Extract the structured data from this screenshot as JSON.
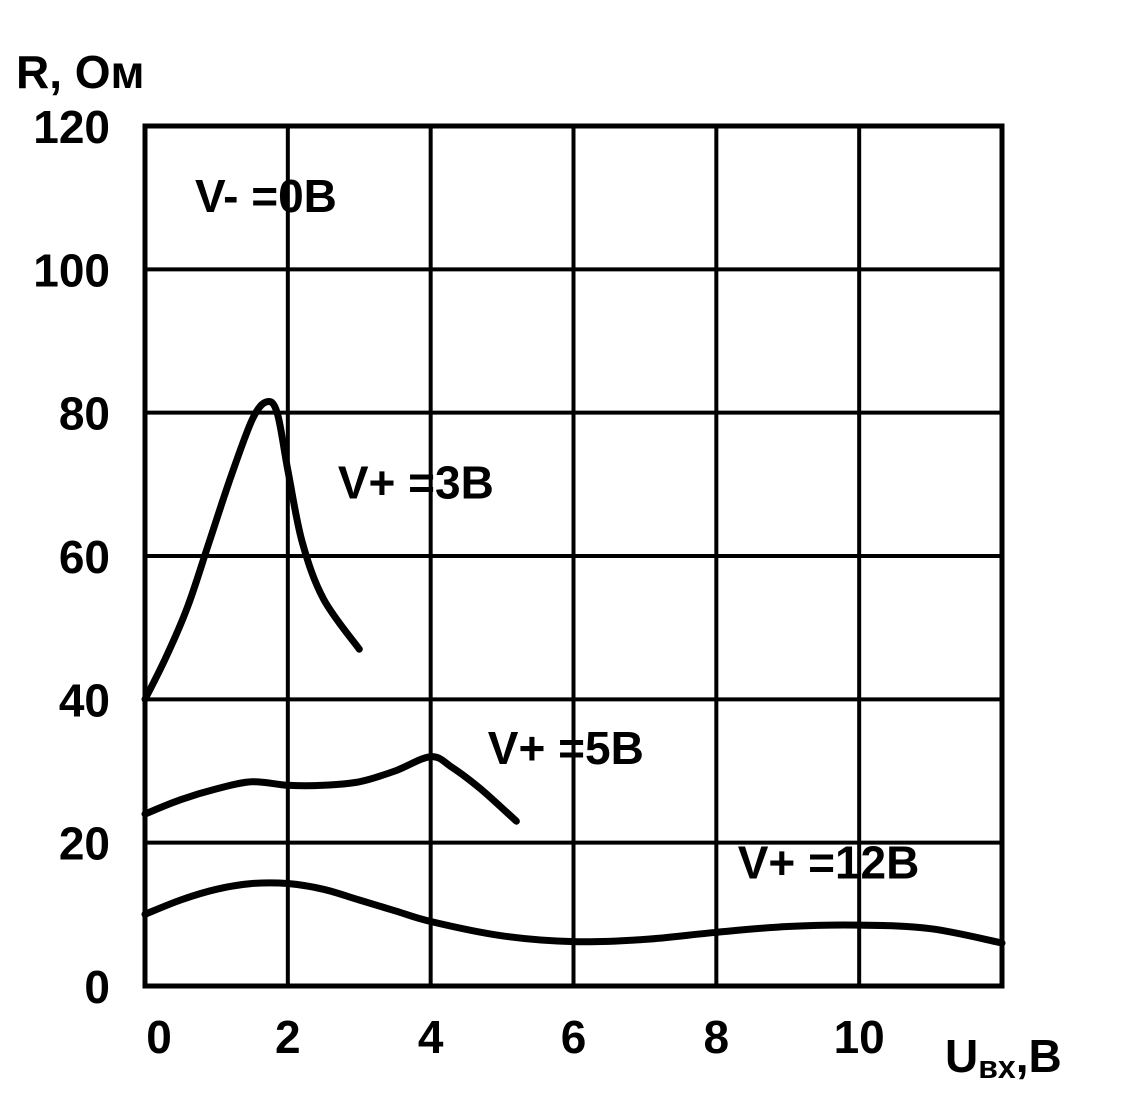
{
  "chart_data": {
    "type": "line",
    "ylabel": "R, Ом",
    "xlabel_main": "U",
    "xlabel_sub": "вх",
    "xlabel_tail": ",В",
    "xlim": [
      0,
      12
    ],
    "ylim": [
      0,
      120
    ],
    "x_ticks": [
      0,
      2,
      4,
      6,
      8,
      10
    ],
    "y_ticks": [
      0,
      20,
      40,
      60,
      80,
      100,
      120
    ],
    "grid": true,
    "annotations": [
      {
        "text": "V- =0В",
        "x": 0.7,
        "y": 108
      },
      {
        "text": "V+ =3В",
        "x": 2.7,
        "y": 68
      },
      {
        "text": "V+ =5В",
        "x": 4.8,
        "y": 31
      },
      {
        "text": "V+ =12В",
        "x": 8.3,
        "y": 15
      }
    ],
    "series": [
      {
        "x": [
          0,
          0.3,
          0.6,
          0.9,
          1.2,
          1.5,
          1.7,
          1.85,
          2.0,
          2.2,
          2.5,
          3.0
        ],
        "y": [
          40,
          46,
          53,
          62,
          71,
          79,
          81.5,
          80,
          72,
          62,
          54,
          47
        ]
      },
      {
        "x": [
          0,
          0.5,
          1.0,
          1.5,
          2.0,
          2.5,
          3.0,
          3.5,
          4.0,
          4.3,
          4.7,
          5.2
        ],
        "y": [
          24,
          26,
          27.5,
          28.5,
          28,
          28,
          28.5,
          30,
          32,
          30.5,
          27.5,
          23
        ]
      },
      {
        "x": [
          0,
          0.5,
          1.0,
          1.5,
          2.0,
          2.5,
          3.0,
          3.5,
          4.0,
          5.0,
          6.0,
          7.0,
          8.0,
          9.0,
          10.0,
          11.0,
          12.0
        ],
        "y": [
          10,
          12,
          13.5,
          14.3,
          14.3,
          13.5,
          12,
          10.5,
          9,
          7,
          6.2,
          6.5,
          7.5,
          8.3,
          8.5,
          8,
          6
        ]
      }
    ]
  }
}
